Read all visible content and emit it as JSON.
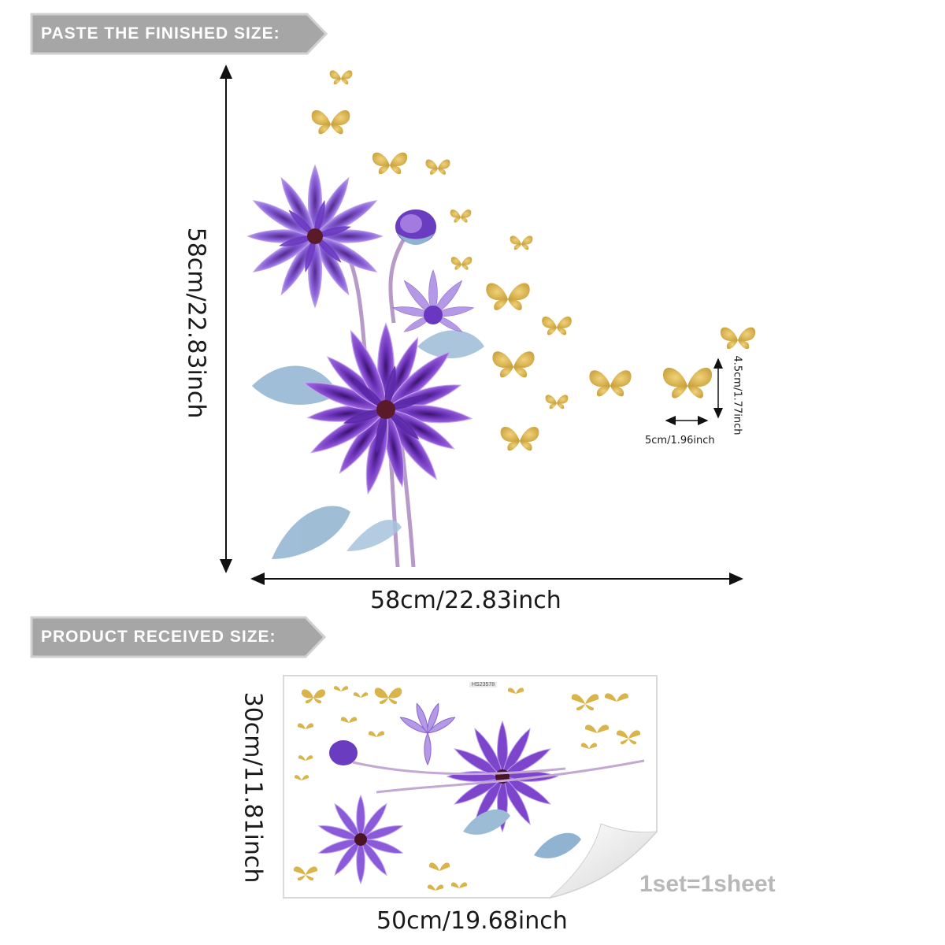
{
  "banners": {
    "finished": "PASTE THE FINISHED SIZE:",
    "received": "PRODUCT RECEIVED SIZE:"
  },
  "finished": {
    "height_label": "58cm/22.83inch",
    "width_label": "58cm/22.83inch"
  },
  "butterfly": {
    "width_label": "5cm/1.96inch",
    "height_label": "4.5cm/1.77inch"
  },
  "received": {
    "height_label": "30cm/11.81inch",
    "width_label": "50cm/19.68inch",
    "sheet_code": "HS23578",
    "quantity_label": "1set=1sheet"
  },
  "colors": {
    "banner": "#a6a6a6",
    "petal_dark": "#5a2aa0",
    "petal_mid": "#8a4fd0",
    "petal_light": "#c7a6ee",
    "leaf": "#8fb3d0",
    "gold": "#d9b44a"
  }
}
